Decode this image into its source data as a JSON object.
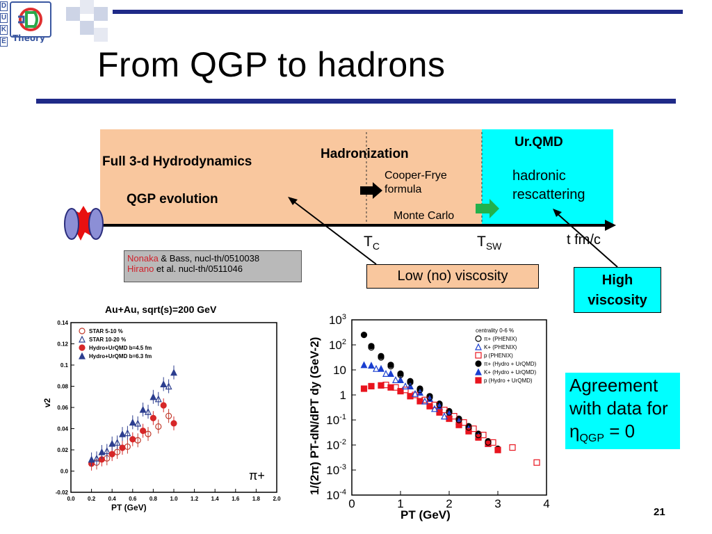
{
  "header": {
    "logo_letters": [
      "D",
      "U",
      "K",
      "E"
    ],
    "logo_word": "Theory",
    "title": "From QGP to hadrons"
  },
  "diagram": {
    "hydro_label": "Full 3-d Hydrodynamics",
    "qgp_label": "QGP evolution",
    "hadronization_label": "Hadronization",
    "cooper_frye_label": "Cooper-Frye\nformula",
    "monte_carlo_label": "Monte Carlo",
    "urqmd_label": "Ur.QMD",
    "hadronic_label": "hadronic\nrescattering",
    "tc_label": "T",
    "tc_sub": "C",
    "tsw_label": "T",
    "tsw_sub": "SW",
    "axis_label": "t fm/c",
    "colors": {
      "peach": "#f9c79e",
      "cyan": "#00ffff",
      "arrow_black": "#000000",
      "arrow_green": "#22b14c"
    }
  },
  "refs": {
    "line1_red": "Nonaka",
    "line1_rest": " & Bass, nucl-th/0510038",
    "line2_red": "Hirano",
    "line2_rest": " et al. nucl-th/0511046"
  },
  "callouts": {
    "low_viscosity": "Low (no) viscosity",
    "high_viscosity": "High\nviscosity",
    "agreement_line1": "Agreement",
    "agreement_line2": "with data for",
    "agreement_eta": "η",
    "agreement_sub": "QGP",
    "agreement_eq": " = 0"
  },
  "page_number": "21",
  "chart_data": [
    {
      "type": "scatter",
      "title": "Au+Au, sqrt(s)=200 GeV",
      "xlabel": "PT (GeV)",
      "ylabel": "v2",
      "xlim": [
        0.0,
        2.0
      ],
      "ylim": [
        -0.02,
        0.14
      ],
      "xticks": [
        "0.0",
        "0.2",
        "0.4",
        "0.6",
        "0.8",
        "1.0",
        "1.2",
        "1.4",
        "1.6",
        "1.8",
        "2.0"
      ],
      "yticks": [
        "-0.02",
        "0.0",
        "0.02",
        "0.04",
        "0.06",
        "0.08",
        "0.1",
        "0.12",
        "0.14"
      ],
      "annotation": "π+",
      "legend": [
        "STAR 5-10 %",
        "STAR 10-20 %",
        "Hydro+UrQMD b=4.5 fm",
        "Hydro+UrQMD b=6.3 fm"
      ],
      "series": [
        {
          "name": "STAR 5-10 %",
          "marker": "circle-open",
          "color": "#c0392b",
          "x": [
            0.25,
            0.35,
            0.45,
            0.55,
            0.65,
            0.75,
            0.85,
            0.95
          ],
          "y": [
            0.008,
            0.012,
            0.018,
            0.023,
            0.029,
            0.035,
            0.042,
            0.052
          ]
        },
        {
          "name": "STAR 10-20 %",
          "marker": "triangle-open",
          "color": "#2c3e8f",
          "x": [
            0.25,
            0.35,
            0.45,
            0.55,
            0.65,
            0.75,
            0.85,
            0.95
          ],
          "y": [
            0.012,
            0.019,
            0.027,
            0.036,
            0.045,
            0.056,
            0.068,
            0.08
          ]
        },
        {
          "name": "Hydro+UrQMD b=4.5 fm",
          "marker": "circle-filled",
          "color": "#d62728",
          "x": [
            0.2,
            0.3,
            0.4,
            0.5,
            0.6,
            0.7,
            0.8,
            0.9,
            1.0
          ],
          "y": [
            0.007,
            0.011,
            0.016,
            0.022,
            0.03,
            0.038,
            0.05,
            0.062,
            0.045
          ]
        },
        {
          "name": "Hydro+UrQMD b=6.3 fm",
          "marker": "triangle-filled",
          "color": "#2c3e8f",
          "x": [
            0.2,
            0.3,
            0.4,
            0.5,
            0.6,
            0.7,
            0.8,
            0.9,
            1.0
          ],
          "y": [
            0.011,
            0.018,
            0.026,
            0.035,
            0.046,
            0.058,
            0.07,
            0.082,
            0.093
          ]
        }
      ]
    },
    {
      "type": "scatter",
      "xlabel": "PT (GeV)",
      "ylabel": "1/(2π) PT-dN/dPT dy (GeV-2)",
      "xlim": [
        0,
        4
      ],
      "ylim_log10": [
        -4,
        3
      ],
      "xticks": [
        "0",
        "1",
        "2",
        "3",
        "4"
      ],
      "yticks": [
        "10^3",
        "10^2",
        "10",
        "1",
        "10^-1",
        "10^-2",
        "10^-3",
        "10^-4"
      ],
      "legend": [
        "centrality 0-6 %",
        "π+ (PHENIX)",
        "K+ (PHENIX)",
        "p (PHENIX)",
        "π+ (Hydro + UrQMD)",
        "K+ (Hydro + UrQMD)",
        "p (Hydro + UrQMD)"
      ],
      "series": [
        {
          "name": "π+ (Hydro + UrQMD)",
          "marker": "circle-filled",
          "color": "#000000",
          "x": [
            0.25,
            0.4,
            0.6,
            0.8,
            1.0,
            1.2,
            1.4,
            1.6,
            1.8,
            2.0,
            2.2,
            2.4,
            2.6,
            2.8,
            3.0
          ],
          "log10y": [
            2.4,
            1.95,
            1.55,
            1.2,
            0.85,
            0.55,
            0.25,
            -0.05,
            -0.35,
            -0.65,
            -0.95,
            -1.25,
            -1.55,
            -1.85,
            -2.15
          ]
        },
        {
          "name": "K+ (Hydro + UrQMD)",
          "marker": "triangle-filled",
          "color": "#1a3fd0",
          "x": [
            0.25,
            0.4,
            0.6,
            0.8,
            1.0,
            1.2,
            1.4,
            1.6,
            1.8,
            2.0,
            2.2,
            2.4,
            2.6,
            2.8
          ],
          "log10y": [
            1.2,
            1.18,
            1.05,
            0.85,
            0.6,
            0.35,
            0.1,
            -0.15,
            -0.45,
            -0.75,
            -1.05,
            -1.35,
            -1.65,
            -1.95
          ]
        },
        {
          "name": "p (Hydro + UrQMD)",
          "marker": "square-filled",
          "color": "#e8141e",
          "x": [
            0.25,
            0.4,
            0.6,
            0.8,
            1.0,
            1.2,
            1.4,
            1.6,
            1.8,
            2.0,
            2.2,
            2.4,
            2.6,
            2.8,
            3.0
          ],
          "log10y": [
            0.25,
            0.35,
            0.38,
            0.3,
            0.15,
            -0.05,
            -0.25,
            -0.45,
            -0.7,
            -0.95,
            -1.2,
            -1.45,
            -1.7,
            -1.95,
            -2.2
          ]
        },
        {
          "name": "p (PHENIX)",
          "marker": "square-open",
          "color": "#e8141e",
          "x": [
            0.7,
            0.9,
            1.1,
            1.3,
            1.5,
            1.7,
            1.9,
            2.1,
            2.3,
            2.5,
            2.7,
            2.9,
            3.3,
            3.8
          ],
          "log10y": [
            0.4,
            0.3,
            0.2,
            0.0,
            -0.2,
            -0.4,
            -0.6,
            -0.85,
            -1.1,
            -1.35,
            -1.6,
            -1.9,
            -2.1,
            -2.7
          ]
        },
        {
          "name": "K+ (PHENIX)",
          "marker": "triangle-open",
          "color": "#1a3fd0",
          "x": [
            0.5,
            0.7,
            0.9,
            1.1,
            1.3,
            1.5,
            1.7,
            1.9
          ],
          "log10y": [
            1.05,
            0.85,
            0.6,
            0.35,
            0.05,
            -0.25,
            -0.55,
            -0.85
          ]
        },
        {
          "name": "π+ (PHENIX)",
          "marker": "circle-open",
          "color": "#000000",
          "x": [
            0.4,
            0.6,
            0.8,
            1.0,
            1.2,
            1.4,
            1.6,
            1.8,
            2.0,
            2.2,
            2.4,
            2.6,
            2.8
          ],
          "log10y": [
            1.9,
            1.5,
            1.15,
            0.8,
            0.5,
            0.2,
            -0.1,
            -0.4,
            -0.7,
            -1.0,
            -1.3,
            -1.6,
            -1.9
          ]
        }
      ]
    }
  ]
}
